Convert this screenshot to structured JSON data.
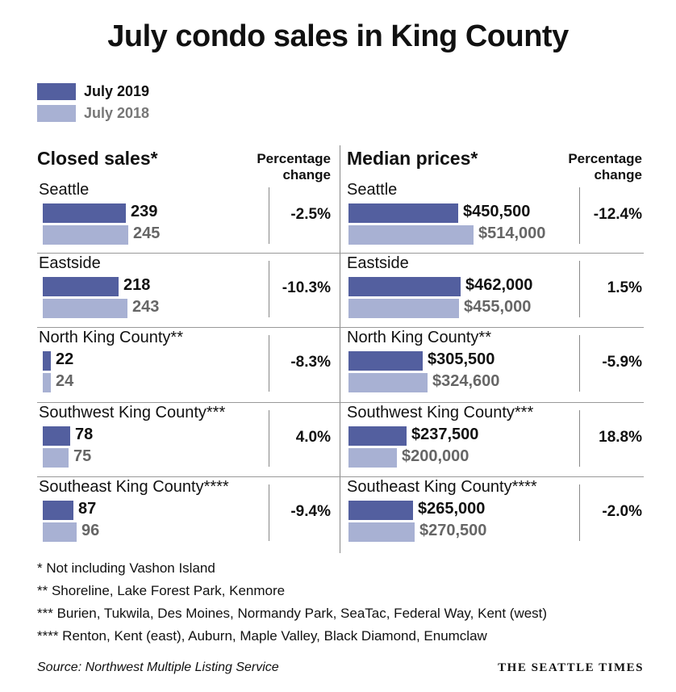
{
  "title": "July condo sales in King County",
  "legend": [
    {
      "label": "July 2019",
      "color": "#535f9f"
    },
    {
      "label": "July 2018",
      "color": "#a8b1d3"
    }
  ],
  "colors": {
    "y2019": "#535f9f",
    "y2018": "#a8b1d3",
    "value2019": "#111111",
    "value2018": "#666666"
  },
  "panels": {
    "sales_header": "Closed sales*",
    "prices_header": "Median prices*",
    "pct_header_line1": "Percentage",
    "pct_header_line2": "change"
  },
  "chart_data": [
    {
      "type": "bar",
      "title": "Closed sales*",
      "categories": [
        "Seattle",
        "Eastside",
        "North King County**",
        "Southwest King County***",
        "Southeast King County****"
      ],
      "series": [
        {
          "name": "July 2019",
          "values": [
            239,
            218,
            22,
            78,
            87
          ],
          "labels": [
            "239",
            "218",
            "22",
            "78",
            "87"
          ]
        },
        {
          "name": "July 2018",
          "values": [
            245,
            243,
            24,
            75,
            96
          ],
          "labels": [
            "245",
            "243",
            "24",
            "75",
            "96"
          ]
        }
      ],
      "percentage_change": [
        "-2.5%",
        "-10.3%",
        "-8.3%",
        "4.0%",
        "-9.4%"
      ]
    },
    {
      "type": "bar",
      "title": "Median prices*",
      "categories": [
        "Seattle",
        "Eastside",
        "North King County**",
        "Southwest King County***",
        "Southeast King County****"
      ],
      "series": [
        {
          "name": "July 2019",
          "values": [
            450500,
            462000,
            305500,
            237500,
            265000
          ],
          "labels": [
            "$450,500",
            "$462,000",
            "$305,500",
            "$237,500",
            "$265,000"
          ]
        },
        {
          "name": "July 2018",
          "values": [
            514000,
            455000,
            324600,
            200000,
            270500
          ],
          "labels": [
            "$514,000",
            "$455,000",
            "$324,600",
            "$200,000",
            "$270,500"
          ]
        }
      ],
      "percentage_change": [
        "-12.4%",
        "1.5%",
        "-5.9%",
        "18.8%",
        "-2.0%"
      ]
    }
  ],
  "footnotes": [
    "* Not including Vashon Island",
    "** Shoreline, Lake Forest Park, Kenmore",
    "*** Burien, Tukwila, Des Moines, Normandy Park, SeaTac, Federal Way, Kent (west)",
    "**** Renton, Kent (east), Auburn, Maple Valley, Black Diamond, Enumclaw"
  ],
  "source": "Source: Northwest Multiple Listing Service",
  "brand": "THE SEATTLE TIMES"
}
